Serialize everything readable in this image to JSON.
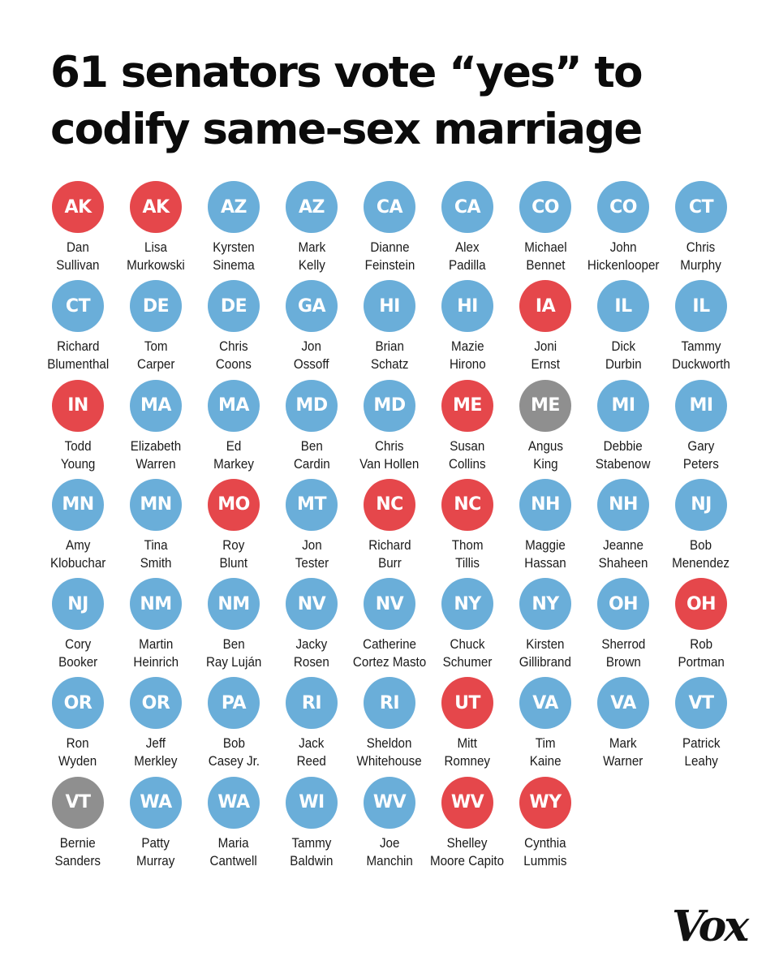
{
  "title": "61 senators vote “yes” to codify same-sex marriage",
  "colors": {
    "R": "#e5474b",
    "D": "#6aaed9",
    "I": "#8f8f8f"
  },
  "senators": [
    {
      "state": "AK",
      "first": "Dan",
      "last": "Sullivan",
      "party": "R"
    },
    {
      "state": "AK",
      "first": "Lisa",
      "last": "Murkowski",
      "party": "R"
    },
    {
      "state": "AZ",
      "first": "Kyrsten",
      "last": "Sinema",
      "party": "D"
    },
    {
      "state": "AZ",
      "first": "Mark",
      "last": "Kelly",
      "party": "D"
    },
    {
      "state": "CA",
      "first": "Dianne",
      "last": "Feinstein",
      "party": "D"
    },
    {
      "state": "CA",
      "first": "Alex",
      "last": "Padilla",
      "party": "D"
    },
    {
      "state": "CO",
      "first": "Michael",
      "last": "Bennet",
      "party": "D"
    },
    {
      "state": "CO",
      "first": "John",
      "last": "Hickenlooper",
      "party": "D"
    },
    {
      "state": "CT",
      "first": "Chris",
      "last": "Murphy",
      "party": "D"
    },
    {
      "state": "CT",
      "first": "Richard",
      "last": "Blumenthal",
      "party": "D"
    },
    {
      "state": "DE",
      "first": "Tom",
      "last": "Carper",
      "party": "D"
    },
    {
      "state": "DE",
      "first": "Chris",
      "last": "Coons",
      "party": "D"
    },
    {
      "state": "GA",
      "first": "Jon",
      "last": "Ossoff",
      "party": "D"
    },
    {
      "state": "HI",
      "first": "Brian",
      "last": "Schatz",
      "party": "D"
    },
    {
      "state": "HI",
      "first": "Mazie",
      "last": "Hirono",
      "party": "D"
    },
    {
      "state": "IA",
      "first": "Joni",
      "last": "Ernst",
      "party": "R"
    },
    {
      "state": "IL",
      "first": "Dick",
      "last": "Durbin",
      "party": "D"
    },
    {
      "state": "IL",
      "first": "Tammy",
      "last": "Duckworth",
      "party": "D"
    },
    {
      "state": "IN",
      "first": "Todd",
      "last": "Young",
      "party": "R"
    },
    {
      "state": "MA",
      "first": "Elizabeth",
      "last": "Warren",
      "party": "D"
    },
    {
      "state": "MA",
      "first": "Ed",
      "last": "Markey",
      "party": "D"
    },
    {
      "state": "MD",
      "first": "Ben",
      "last": "Cardin",
      "party": "D"
    },
    {
      "state": "MD",
      "first": "Chris",
      "last": "Van Hollen",
      "party": "D"
    },
    {
      "state": "ME",
      "first": "Susan",
      "last": "Collins",
      "party": "R"
    },
    {
      "state": "ME",
      "first": "Angus",
      "last": "King",
      "party": "I"
    },
    {
      "state": "MI",
      "first": "Debbie",
      "last": "Stabenow",
      "party": "D"
    },
    {
      "state": "MI",
      "first": "Gary",
      "last": "Peters",
      "party": "D"
    },
    {
      "state": "MN",
      "first": "Amy",
      "last": "Klobuchar",
      "party": "D"
    },
    {
      "state": "MN",
      "first": "Tina",
      "last": "Smith",
      "party": "D"
    },
    {
      "state": "MO",
      "first": "Roy",
      "last": "Blunt",
      "party": "R"
    },
    {
      "state": "MT",
      "first": "Jon",
      "last": "Tester",
      "party": "D"
    },
    {
      "state": "NC",
      "first": "Richard",
      "last": "Burr",
      "party": "R"
    },
    {
      "state": "NC",
      "first": "Thom",
      "last": "Tillis",
      "party": "R"
    },
    {
      "state": "NH",
      "first": "Maggie",
      "last": "Hassan",
      "party": "D"
    },
    {
      "state": "NH",
      "first": "Jeanne",
      "last": "Shaheen",
      "party": "D"
    },
    {
      "state": "NJ",
      "first": "Bob",
      "last": "Menendez",
      "party": "D"
    },
    {
      "state": "NJ",
      "first": "Cory",
      "last": "Booker",
      "party": "D"
    },
    {
      "state": "NM",
      "first": "Martin",
      "last": "Heinrich",
      "party": "D"
    },
    {
      "state": "NM",
      "first": "Ben",
      "last": "Ray Luján",
      "party": "D"
    },
    {
      "state": "NV",
      "first": "Jacky",
      "last": "Rosen",
      "party": "D"
    },
    {
      "state": "NV",
      "first": "Catherine",
      "last": "Cortez Masto",
      "party": "D"
    },
    {
      "state": "NY",
      "first": "Chuck",
      "last": "Schumer",
      "party": "D"
    },
    {
      "state": "NY",
      "first": "Kirsten",
      "last": "Gillibrand",
      "party": "D"
    },
    {
      "state": "OH",
      "first": "Sherrod",
      "last": "Brown",
      "party": "D"
    },
    {
      "state": "OH",
      "first": "Rob",
      "last": "Portman",
      "party": "R"
    },
    {
      "state": "OR",
      "first": "Ron",
      "last": "Wyden",
      "party": "D"
    },
    {
      "state": "OR",
      "first": "Jeff",
      "last": "Merkley",
      "party": "D"
    },
    {
      "state": "PA",
      "first": "Bob",
      "last": "Casey Jr.",
      "party": "D"
    },
    {
      "state": "RI",
      "first": "Jack",
      "last": "Reed",
      "party": "D"
    },
    {
      "state": "RI",
      "first": "Sheldon",
      "last": "Whitehouse",
      "party": "D"
    },
    {
      "state": "UT",
      "first": "Mitt",
      "last": "Romney",
      "party": "R"
    },
    {
      "state": "VA",
      "first": "Tim",
      "last": "Kaine",
      "party": "D"
    },
    {
      "state": "VA",
      "first": "Mark",
      "last": "Warner",
      "party": "D"
    },
    {
      "state": "VT",
      "first": "Patrick",
      "last": "Leahy",
      "party": "D"
    },
    {
      "state": "VT",
      "first": "Bernie",
      "last": "Sanders",
      "party": "I"
    },
    {
      "state": "WA",
      "first": "Patty",
      "last": "Murray",
      "party": "D"
    },
    {
      "state": "WA",
      "first": "Maria",
      "last": "Cantwell",
      "party": "D"
    },
    {
      "state": "WI",
      "first": "Tammy",
      "last": "Baldwin",
      "party": "D"
    },
    {
      "state": "WV",
      "first": "Joe",
      "last": "Manchin",
      "party": "D"
    },
    {
      "state": "WV",
      "first": "Shelley",
      "last": "Moore Capito",
      "party": "R"
    },
    {
      "state": "WY",
      "first": "Cynthia",
      "last": "Lummis",
      "party": "R"
    }
  ],
  "logo": "Vox"
}
